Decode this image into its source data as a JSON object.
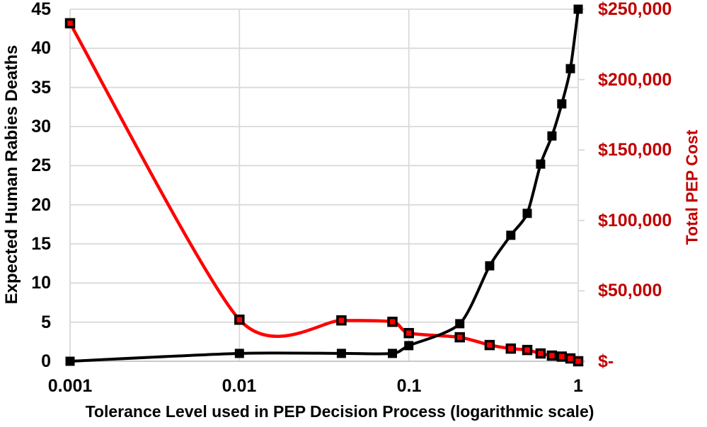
{
  "chart_data": {
    "type": "line",
    "xlabel": "Tolerance Level used in PEP Decision Process (logarithmic scale)",
    "ylabel_left": "Expected Human Rabies Deaths",
    "ylabel_right": "Total PEP Cost",
    "x_scale": "log",
    "xlim": [
      0.001,
      1
    ],
    "grid": true,
    "legend": "none",
    "x": [
      0.001,
      0.01,
      0.04,
      0.08,
      0.1,
      0.2,
      0.3,
      0.4,
      0.5,
      0.6,
      0.7,
      0.8,
      0.9,
      1
    ],
    "series": [
      {
        "name": "Total PEP Cost",
        "axis": "right",
        "color": "#FF0000",
        "marker": "square-red-fill-black-edge",
        "values": [
          240000,
          29500,
          29000,
          28000,
          20000,
          17000,
          11500,
          9000,
          8000,
          5500,
          4000,
          3300,
          2000,
          0
        ]
      },
      {
        "name": "Expected Human Rabies Deaths",
        "axis": "left",
        "color": "#000000",
        "marker": "square-solid-black",
        "values": [
          0,
          1,
          1,
          1,
          2,
          4.8,
          12.2,
          16.1,
          18.9,
          25.2,
          28.8,
          32.9,
          37.4,
          45
        ]
      }
    ],
    "left_axis": {
      "min": 0,
      "max": 45,
      "tick_step": 5,
      "ticks": [
        "0",
        "5",
        "10",
        "15",
        "20",
        "25",
        "30",
        "35",
        "40",
        "45"
      ],
      "color": "#000000"
    },
    "right_axis": {
      "min": 0,
      "max": 250000,
      "tick_step": 50000,
      "ticks": [
        "$-",
        "$50,000",
        "$100,000",
        "$150,000",
        "$200,000",
        "$250,000"
      ],
      "color": "#C00000"
    },
    "x_axis": {
      "ticks": [
        "0.001",
        "0.01",
        "0.1",
        "1"
      ],
      "values": [
        0.001,
        0.01,
        0.1,
        1
      ],
      "color": "#000000"
    }
  },
  "colors": {
    "background": "#FFFFFF",
    "gridline": "#D9D9D9",
    "axis_line": "#C9C9C9",
    "deaths_series": "#000000",
    "cost_series": "#FF0000",
    "right_axis_text": "#C00000"
  }
}
